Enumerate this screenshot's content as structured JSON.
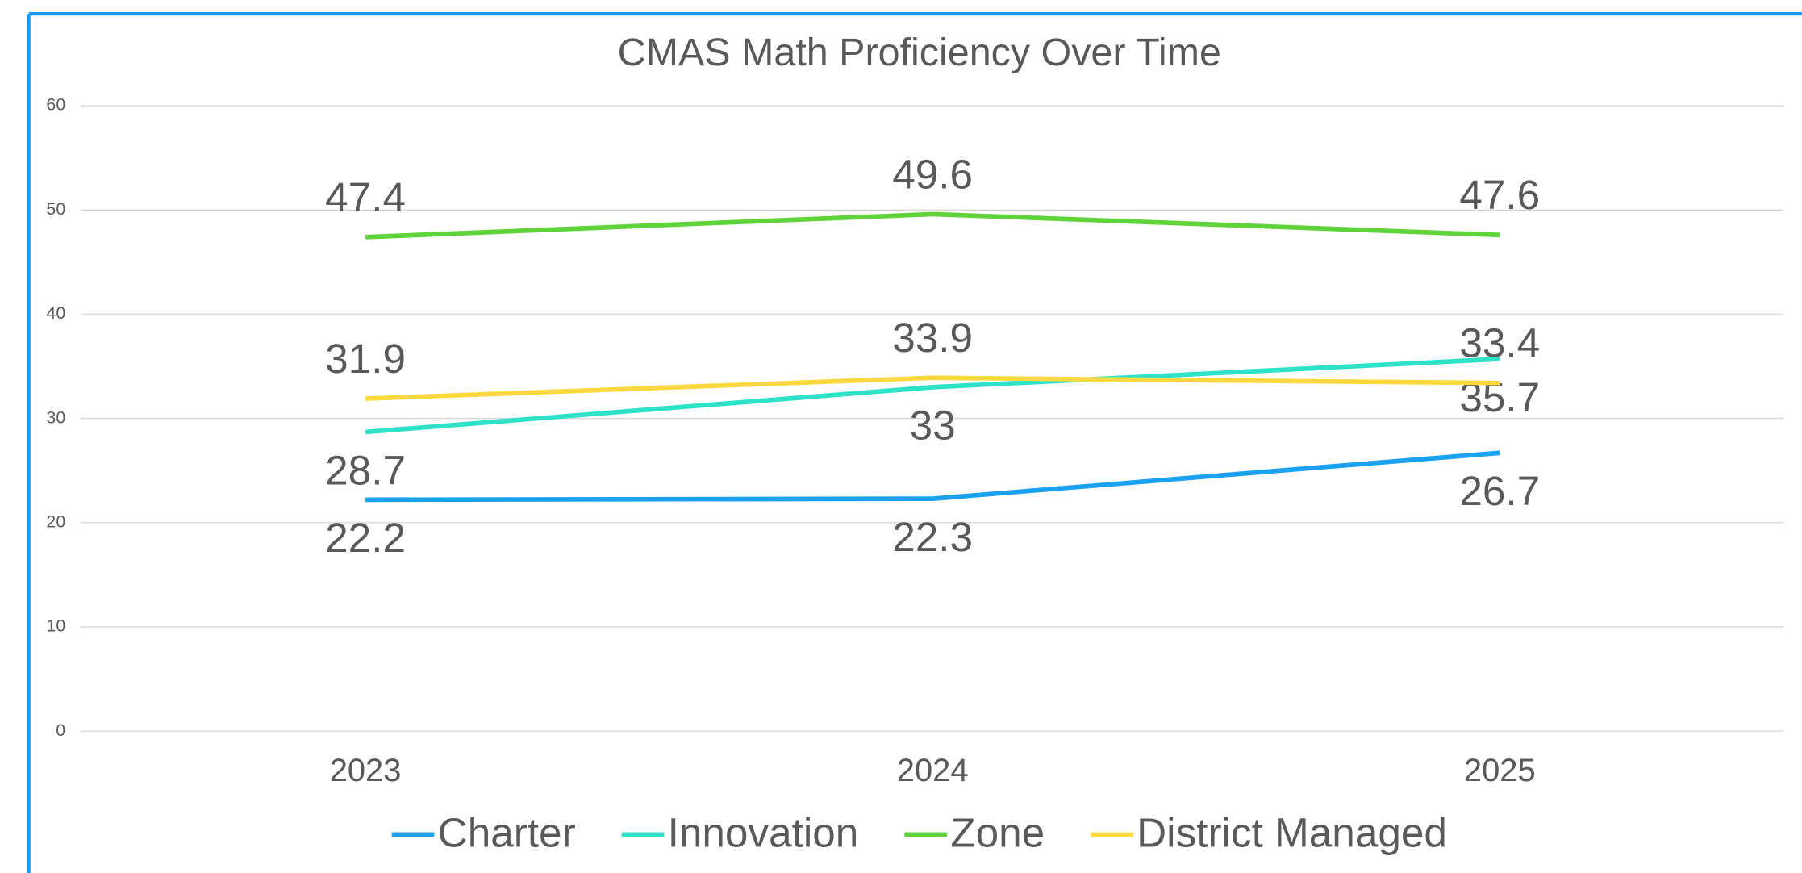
{
  "chart_data": {
    "type": "line",
    "title": "CMAS Math Proficiency Over Time",
    "categories": [
      "2023",
      "2024",
      "2025"
    ],
    "series": [
      {
        "name": "Charter",
        "color": "#1aa1f0",
        "values": [
          22.2,
          22.3,
          26.7
        ],
        "label_position": "below"
      },
      {
        "name": "Innovation",
        "color": "#2de2c8",
        "values": [
          28.7,
          33,
          35.7
        ],
        "label_position": "below"
      },
      {
        "name": "Zone",
        "color": "#5fd43a",
        "values": [
          47.4,
          49.6,
          47.6
        ],
        "label_position": "above"
      },
      {
        "name": "District Managed",
        "color": "#fcd840",
        "values": [
          31.9,
          33.9,
          33.4
        ],
        "label_position": "above"
      }
    ],
    "ylim": [
      0,
      60
    ],
    "yticks": [
      0,
      10,
      20,
      30,
      40,
      50,
      60
    ],
    "grid": true,
    "legend": "bottom"
  }
}
